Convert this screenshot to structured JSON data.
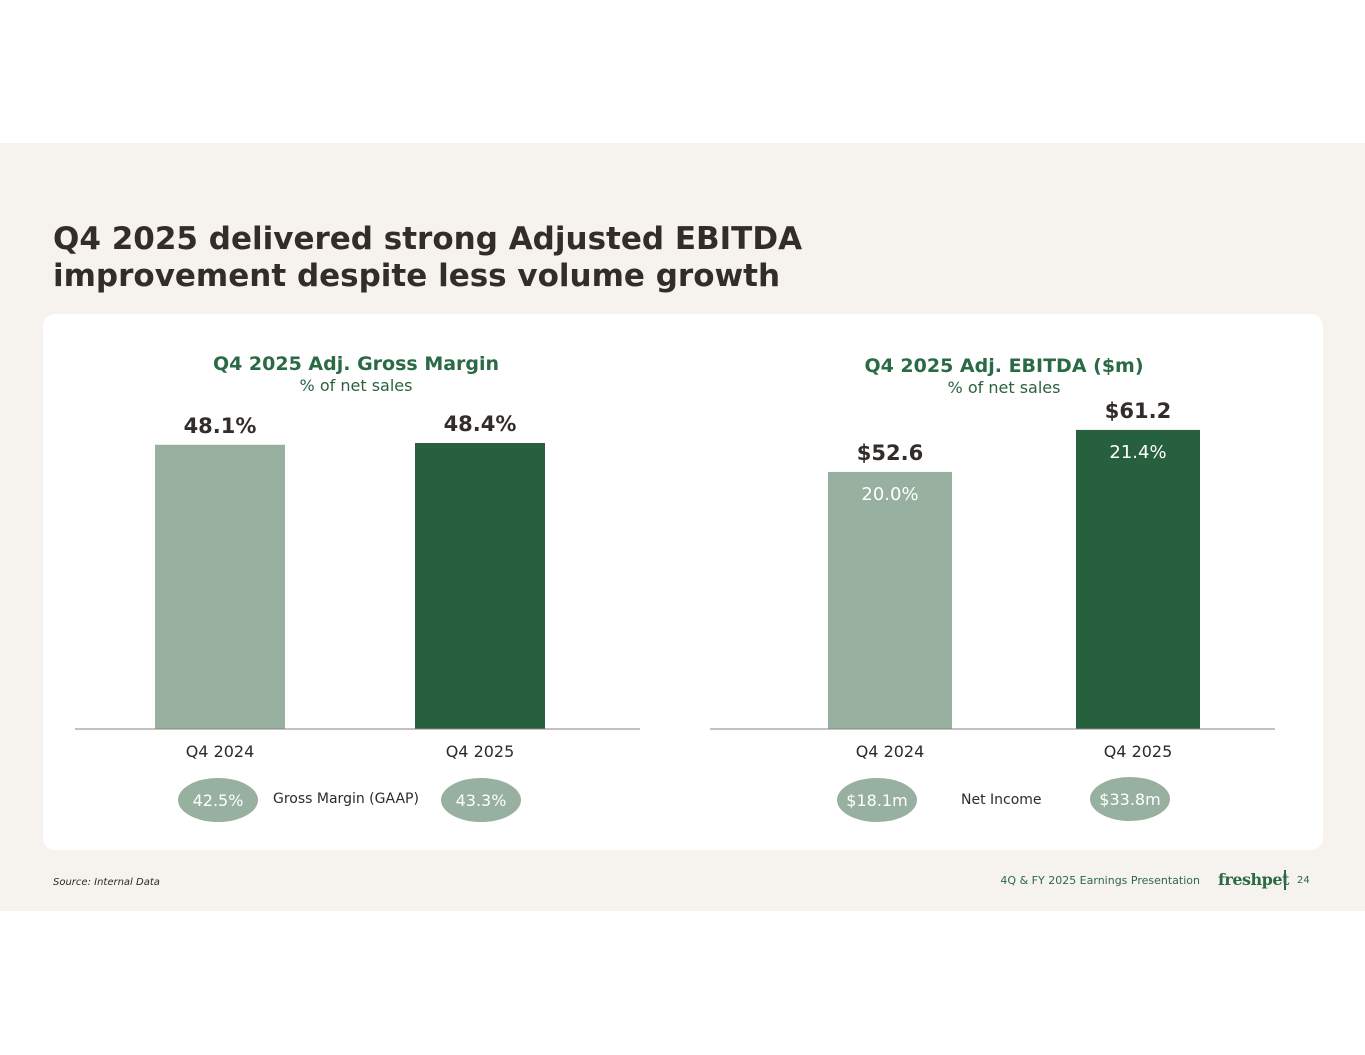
{
  "slide": {
    "title_line1": "Q4 2025 delivered strong Adjusted EBITDA",
    "title_line2": "improvement despite less volume growth",
    "source": "Source: Internal Data",
    "footer_text": "4Q & FY 2025 Earnings Presentation",
    "logo_text": "freshpet",
    "page_number": "24",
    "colors": {
      "background": "#f6f2ee",
      "panel": "#ffffff",
      "light_green": "#97b0a0",
      "dark_green": "#27603f",
      "title_green": "#2a6a45"
    }
  },
  "chart_data": [
    {
      "type": "bar",
      "title": "Q4 2025 Adj. Gross Margin",
      "subtitle": "% of net sales",
      "categories": [
        "Q4 2024",
        "Q4 2025"
      ],
      "values": [
        48.1,
        48.4
      ],
      "value_labels": [
        "48.1%",
        "48.4%"
      ],
      "ylim": [
        0,
        55
      ],
      "bar_colors": [
        "#97b0a0",
        "#27603f"
      ],
      "footer_metric": {
        "label": "Gross Margin (GAAP)",
        "values": [
          "42.5%",
          "43.3%"
        ]
      }
    },
    {
      "type": "bar",
      "title": "Q4 2025 Adj. EBITDA ($m)",
      "subtitle": "% of net sales",
      "categories": [
        "Q4 2024",
        "Q4 2025"
      ],
      "values": [
        52.6,
        61.2
      ],
      "value_labels": [
        "$52.6",
        "$61.2"
      ],
      "inner_labels": [
        "20.0%",
        "21.4%"
      ],
      "ylim": [
        0,
        66.5
      ],
      "bar_colors": [
        "#97b0a0",
        "#27603f"
      ],
      "footer_metric": {
        "label": "Net Income",
        "values": [
          "$18.1m",
          "$33.8m"
        ]
      }
    }
  ]
}
